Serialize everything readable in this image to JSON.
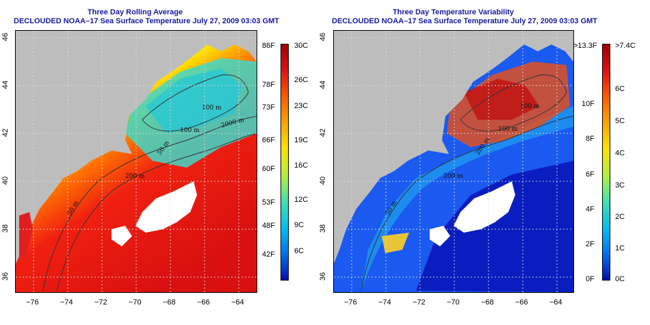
{
  "left_panel": {
    "title_line1": "Three Day Rolling Average",
    "title_line2": "DECLOUDED NOAA–17 Sea Surface Temperature July 27, 2009 03:03 GMT",
    "x_ticks": [
      "−76",
      "−74",
      "−72",
      "−70",
      "−68",
      "−66",
      "−64"
    ],
    "y_ticks": [
      "46",
      "44",
      "42",
      "40",
      "38",
      "36"
    ],
    "contour_labels": [
      "100 m",
      "100 m",
      "50 m",
      "2000 m",
      "200 m",
      "50 m"
    ],
    "colorbar": {
      "left_labels": [
        "86F",
        "78F",
        "73F",
        "66F",
        "60F",
        "53F",
        "48F",
        "42F"
      ],
      "right_labels": [
        "30C",
        "26C",
        "23C",
        "19C",
        "16C",
        "12C",
        "9C",
        "6C"
      ],
      "colors": [
        "#a00000",
        "#e01010",
        "#ff5a00",
        "#ffa000",
        "#ffe000",
        "#b0f040",
        "#40e0b0",
        "#00c0f0",
        "#0070f0",
        "#0010b0"
      ]
    }
  },
  "right_panel": {
    "title_line1": "Three Day Temperature Variability",
    "title_line2": "DECLOUDED NOAA–17 Sea Surface Temperature July 27, 2009 03:03 GMT",
    "x_ticks": [
      "−76",
      "−74",
      "−72",
      "−70",
      "−68",
      "−66",
      "−64"
    ],
    "y_ticks": [
      "46",
      "44",
      "42",
      "40",
      "38",
      "36"
    ],
    "contour_labels": [
      "100 m",
      "100 m",
      "200 m",
      "200 m",
      "50 m"
    ],
    "colorbar": {
      "left_labels": [
        ">13.3F",
        "10F",
        "8F",
        "6F",
        "4F",
        "2F",
        "0F"
      ],
      "right_labels": [
        ">7.4C",
        "6C",
        "5C",
        "4C",
        "3C",
        "2C",
        "1C",
        "0C"
      ],
      "colors": [
        "#a00000",
        "#e01010",
        "#ff5a00",
        "#ffa000",
        "#ffe000",
        "#b0f040",
        "#40e0b0",
        "#00c0f0",
        "#0070f0",
        "#0010b0"
      ]
    }
  },
  "colors": {
    "land": "#bdbdbd",
    "title": "#1a1aa0",
    "cloud": "#ffffff",
    "contour": "#333333"
  }
}
